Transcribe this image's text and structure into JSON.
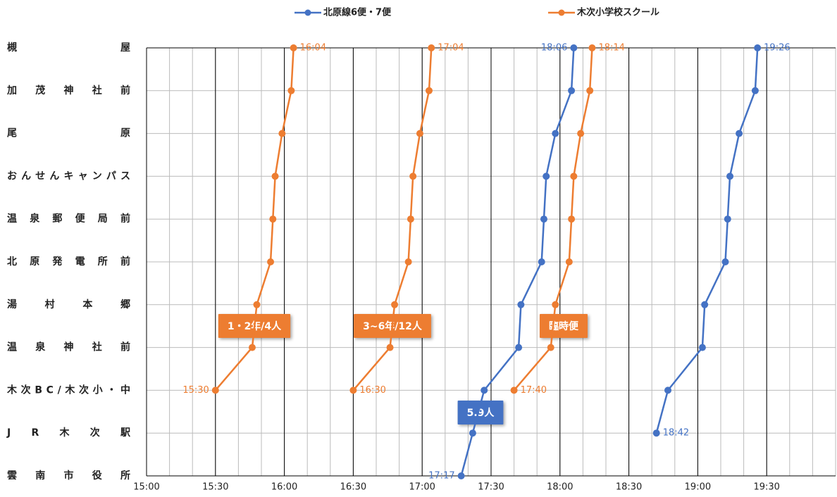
{
  "chart_data": {
    "type": "line",
    "categories": [
      "槻屋",
      "加茂神社前",
      "尾原",
      "おんせんキャンパス",
      "温泉郵便局前",
      "北原発電所前",
      "湯村本郷",
      "温泉神社前",
      "木次BC/木次小・中",
      "JR木次駅",
      "雲南市役所"
    ],
    "xlim": [
      900,
      1200
    ],
    "xticks": [
      {
        "value": 900,
        "label": "15:00"
      },
      {
        "value": 930,
        "label": "15:30"
      },
      {
        "value": 960,
        "label": "16:00"
      },
      {
        "value": 990,
        "label": "16:30"
      },
      {
        "value": 1020,
        "label": "17:00"
      },
      {
        "value": 1050,
        "label": "17:30"
      },
      {
        "value": 1080,
        "label": "18:00"
      },
      {
        "value": 1110,
        "label": "18:30"
      },
      {
        "value": 1140,
        "label": "19:00"
      },
      {
        "value": 1170,
        "label": "19:30"
      }
    ],
    "minor_grid_step": 10,
    "grid": true,
    "series": [
      {
        "name": "北原線6便・7便",
        "color": "#4472C4",
        "trips": [
          {
            "values": [
              1086,
              1085,
              1078,
              1074,
              1073,
              1072,
              1063,
              1062,
              1047,
              1042,
              1037
            ],
            "value_labels": [
              "18:06",
              null,
              null,
              null,
              null,
              null,
              null,
              null,
              null,
              null,
              "17:17"
            ]
          },
          {
            "values": [
              1166,
              1165,
              1158,
              1154,
              1153,
              1152,
              1143,
              1142,
              1127,
              1122,
              null
            ],
            "value_labels": [
              "19:26",
              null,
              null,
              null,
              null,
              null,
              null,
              null,
              null,
              "18:42",
              null
            ]
          }
        ]
      },
      {
        "name": "木次小学校スクール",
        "color": "#ED7D31",
        "trips": [
          {
            "values": [
              964,
              963,
              959,
              956,
              955,
              954,
              948,
              946,
              930,
              null,
              null
            ],
            "value_labels": [
              "16:04",
              null,
              null,
              null,
              null,
              null,
              null,
              null,
              "15:30",
              null,
              null
            ]
          },
          {
            "values": [
              1024,
              1023,
              1019,
              1016,
              1015,
              1014,
              1008,
              1006,
              990,
              null,
              null
            ],
            "value_labels": [
              "17:04",
              null,
              null,
              null,
              null,
              null,
              null,
              null,
              "16:30",
              null,
              null
            ]
          },
          {
            "values": [
              1094,
              1093,
              1089,
              1086,
              1085,
              1084,
              1078,
              1076,
              1060,
              null,
              null
            ],
            "value_labels": [
              "18:14",
              null,
              null,
              null,
              null,
              null,
              null,
              null,
              "17:40",
              null,
              null
            ]
          }
        ]
      }
    ],
    "annotations": [
      {
        "text": "1・2年/4人",
        "color": "#ED7D31"
      },
      {
        "text": "3~6年/12人",
        "color": "#ED7D31"
      },
      {
        "text": "臨時便",
        "color": "#ED7D31"
      },
      {
        "text": "5.9人",
        "color": "#4472C4"
      }
    ]
  }
}
